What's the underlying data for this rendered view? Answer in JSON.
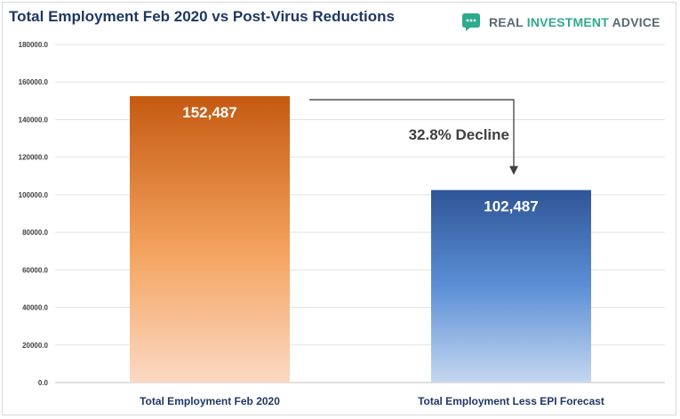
{
  "header": {
    "title": "Total Employment Feb 2020 vs Post-Virus Reductions",
    "brand_name": "REAL INVESTMENT ADVICE",
    "brand_word_1": "REAL",
    "brand_word_2": "INVESTMENT",
    "brand_word_3": "ADVICE",
    "logo_icon": "chat-bubble-icon"
  },
  "colors": {
    "title": "#1f3864",
    "bar1_top": "#c55a11",
    "bar1_mid": "#f4a460",
    "bar1_bottom": "#fbd9c4",
    "bar2_top": "#2f5597",
    "bar2_mid": "#5b8fd6",
    "bar2_bottom": "#c5d7f0",
    "brand_accent": "#2eaa8e",
    "brand_gray": "#5b6770"
  },
  "chart_data": {
    "type": "bar",
    "title": "Total Employment Feb 2020 vs Post-Virus Reductions",
    "categories": [
      "Total Employment Feb 2020",
      "Total Employment Less EPI Forecast"
    ],
    "values": [
      152487,
      102487
    ],
    "data_labels": [
      "152,487",
      "102,487"
    ],
    "y_ticks": [
      "0.0",
      "20000.0",
      "40000.0",
      "60000.0",
      "80000.0",
      "100000.0",
      "120000.0",
      "140000.0",
      "160000.0",
      "180000.0"
    ],
    "ylim": [
      0,
      180000
    ],
    "grid": true,
    "annotation": "32.8% Decline",
    "xlabel": "",
    "ylabel": ""
  }
}
